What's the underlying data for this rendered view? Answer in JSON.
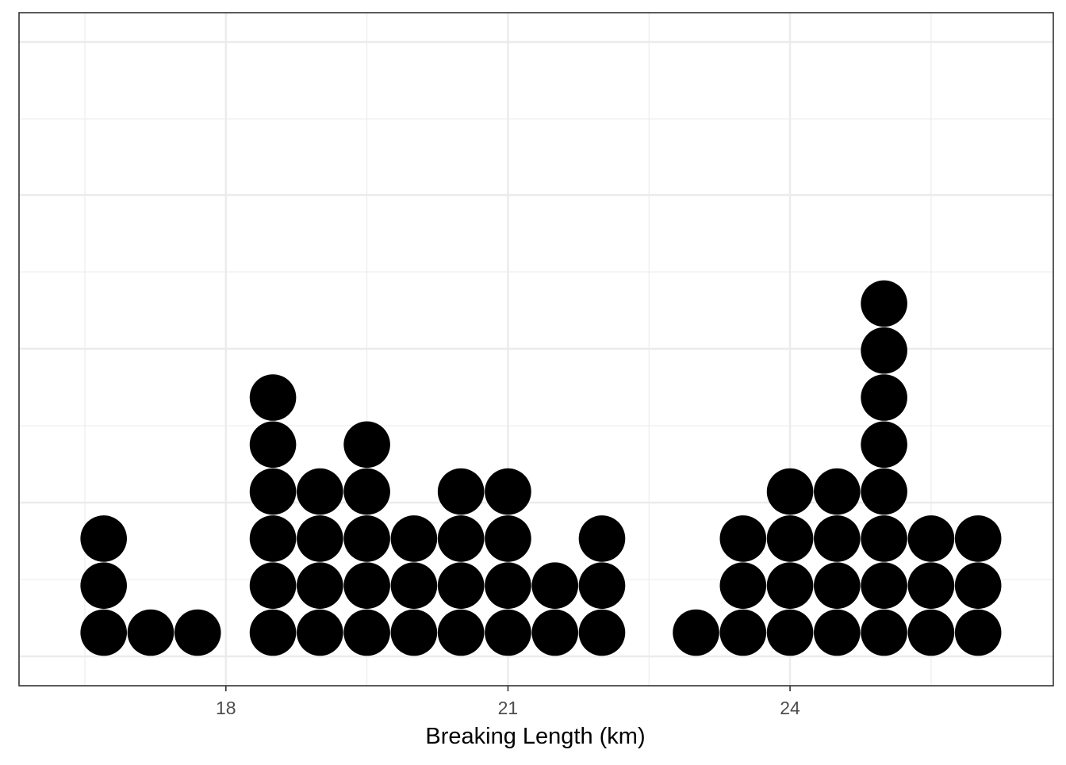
{
  "chart_data": {
    "type": "dotplot",
    "title": "",
    "xlabel": "Breaking Length (km)",
    "ylabel": "",
    "x_ticks": [
      18,
      21,
      24
    ],
    "x_tick_labels": [
      "18",
      "21",
      "24"
    ],
    "y_tick_labels": [],
    "xlim": [
      15.8,
      26.8
    ],
    "grid": true,
    "theme": "bw",
    "dot_color": "#000000",
    "bins": [
      {
        "x": 16.7,
        "count": 3
      },
      {
        "x": 17.2,
        "count": 1
      },
      {
        "x": 17.7,
        "count": 1
      },
      {
        "x": 18.5,
        "count": 6
      },
      {
        "x": 19.0,
        "count": 4
      },
      {
        "x": 19.5,
        "count": 5
      },
      {
        "x": 20.0,
        "count": 3
      },
      {
        "x": 20.5,
        "count": 4
      },
      {
        "x": 21.0,
        "count": 4
      },
      {
        "x": 21.5,
        "count": 2
      },
      {
        "x": 22.0,
        "count": 3
      },
      {
        "x": 23.0,
        "count": 1
      },
      {
        "x": 23.5,
        "count": 3
      },
      {
        "x": 24.0,
        "count": 4
      },
      {
        "x": 24.5,
        "count": 4
      },
      {
        "x": 25.0,
        "count": 8
      },
      {
        "x": 25.5,
        "count": 3
      },
      {
        "x": 26.0,
        "count": 3
      }
    ]
  }
}
